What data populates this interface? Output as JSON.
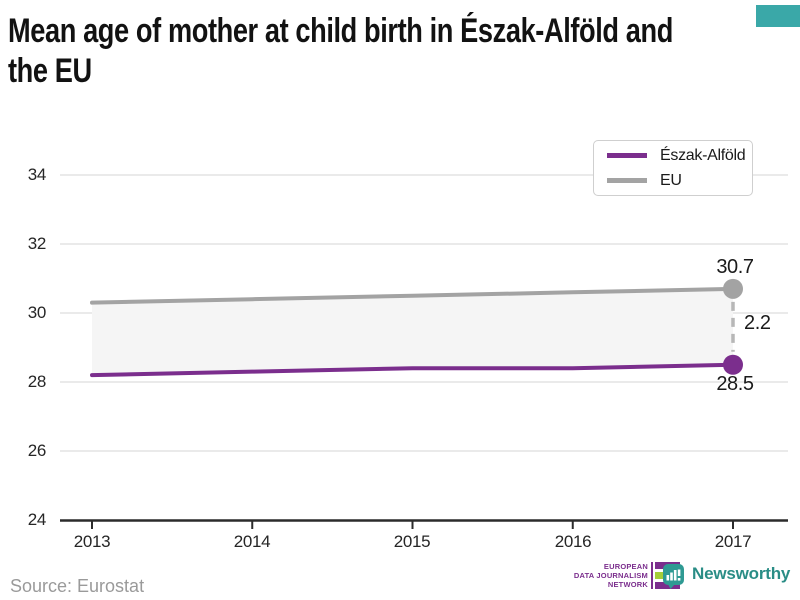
{
  "title": {
    "line1": "Mean age of mother at child birth in Észak-Alföld and",
    "line2": "the EU"
  },
  "legend": {
    "items": [
      {
        "label": "Észak-Alföld",
        "color": "#7b2e8d"
      },
      {
        "label": "EU",
        "color": "#a3a3a3"
      }
    ]
  },
  "axis": {
    "y_tick_labels": [
      "34",
      "32",
      "30",
      "28",
      "26",
      "24"
    ],
    "x_tick_labels": [
      "2013",
      "2014",
      "2015",
      "2016",
      "2017"
    ]
  },
  "annotations": {
    "eu_end": "30.7",
    "region_end": "28.5",
    "difference": "2.2"
  },
  "footer": {
    "source": "Source: Eurostat",
    "edjn": {
      "line1": "EUROPEAN",
      "line2": "DATA JOURNALISM",
      "line3": "NETWORK"
    },
    "newsworthy": "Newsworthy"
  },
  "colors": {
    "region": "#7b2e8d",
    "eu": "#a3a3a3",
    "band": "#f5f5f5",
    "grid": "#e3e3e3",
    "axis": "#2b2b2b",
    "dashed": "#b7b7b7",
    "corner_tag": "#3aa8a8",
    "edjn_purple": "#7b2e8d",
    "edjn_green": "#a5ce39",
    "newsworthy_teal": "#2f9a93"
  },
  "chart_data": {
    "type": "line",
    "title": "Mean age of mother at child birth in Észak-Alföld and the EU",
    "x": [
      2013,
      2014,
      2015,
      2016,
      2017
    ],
    "series": [
      {
        "name": "Észak-Alföld",
        "color": "#7b2e8d",
        "values": [
          28.2,
          28.3,
          28.4,
          28.4,
          28.5
        ]
      },
      {
        "name": "EU",
        "color": "#a3a3a3",
        "values": [
          30.3,
          30.4,
          30.5,
          30.6,
          30.7
        ]
      }
    ],
    "y_ticks": [
      24,
      26,
      28,
      30,
      32,
      34
    ],
    "ylim": [
      24,
      34.8
    ],
    "xlabel": "",
    "ylabel": "",
    "grid": "horizontal",
    "legend_position": "top-right",
    "fill_between": true,
    "end_labels": {
      "EU": 30.7,
      "Észak-Alföld": 28.5,
      "difference": 2.2
    }
  }
}
